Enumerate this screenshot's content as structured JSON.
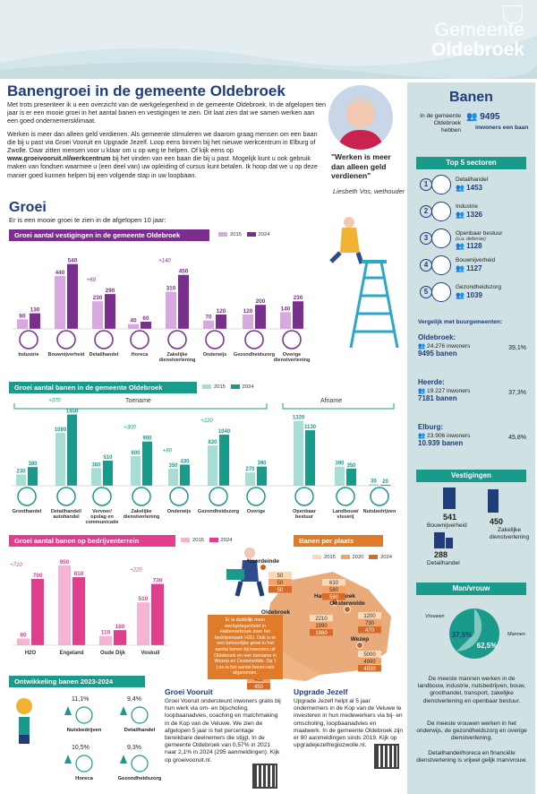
{
  "header": {
    "org_line1": "Gemeente",
    "org_line2": "Oldebroek"
  },
  "title": "Banengroei in de gemeente Oldebroek",
  "intro": {
    "p1": "Met trots presenteer ik u een overzicht van de werkgelegenheid in de gemeente Oldebroek. In de afgelopen tien jaar is er een mooie groei in het aantal banen en vestigingen te zien. Dit laat zien dat we samen werken aan een goed ondernemersklimaat.",
    "p2a": "Werken is meer dan alleen geld verdienen. Als gemeente stimuleren we daarom graag mensen om een baan die bij u past via Groei Vooruit en Upgrade Jezelf. Loop eens binnen bij het nieuwe werkcentrum in Elburg of Zwolle. Daar zitten mensen voor u klaar om u op weg te helpen. Of kijk eens op",
    "link": "www.groeivooruit.nl/werkcentrum",
    "p2b": "bij het vinden van een baan die bij u past. Mogelijk kunt u ook gebruik maken van fondsen waarmee u (een deel van) uw opleiding of cursus kunt betalen. Ik hoop dat we u op deze manier goed kunnen helpen bij een volgende stap in uw loopbaan."
  },
  "quote": {
    "text": "\"Werken is meer dan alleen geld verdienen\"",
    "by": "Liesbeth Vos, wethouder"
  },
  "groei": {
    "title": "Groei",
    "subtitle": "Er is een mooie groei te zien in de afgelopen 10 jaar:"
  },
  "colors": {
    "purple": "#7a2f8f",
    "teal": "#1a9a8a",
    "pink": "#e23e8e",
    "orange": "#e07b2a",
    "navy": "#1f3d7a"
  },
  "chart_data": [
    {
      "type": "bar",
      "title": "Groei aantal vestigingen in de gemeente Oldebroek",
      "legend": [
        "2015",
        "2024"
      ],
      "categories": [
        "Industrie",
        "Bouwnijverheid",
        "Detailhandel",
        "Horeca",
        "Zakelijke dienstverlening",
        "Onderwijs",
        "Gezondheidszorg",
        "Overige dienstverlening"
      ],
      "series": [
        {
          "name": "2015",
          "values": [
            80,
            440,
            230,
            40,
            310,
            70,
            120,
            140
          ]
        },
        {
          "name": "2024",
          "values": [
            130,
            540,
            290,
            60,
            450,
            120,
            200,
            230
          ]
        }
      ],
      "annotations": [
        {
          "category": "Detailhandel",
          "text": "+60"
        },
        {
          "category": "Zakelijke dienstverlening",
          "text": "+140"
        }
      ],
      "icons": [
        "factory-icon",
        "tools-icon",
        "cart-icon",
        "cup-icon",
        "briefcase-icon",
        "cap-icon",
        "cross-icon",
        "star-icon"
      ]
    },
    {
      "type": "bar",
      "title": "Groei aantal banen in de gemeente Oldebroek",
      "legend": [
        "2015",
        "2024"
      ],
      "group_labels": [
        "Toename",
        "Afname"
      ],
      "categories": [
        "Groothandel",
        "Detailhandel/ autohandel",
        "Vervoer/ opslag en communicatie",
        "Zakelijke dienstverlening",
        "Onderwijs",
        "Gezondheidszorg",
        "Overige",
        "Openbaar bestuur",
        "Landbouw/ visserij",
        "Nutsbedrijven"
      ],
      "series": [
        {
          "name": "2015",
          "values": [
            230,
            1080,
            360,
            600,
            350,
            820,
            270,
            1320,
            390,
            30
          ]
        },
        {
          "name": "2024",
          "values": [
            380,
            1450,
            510,
            900,
            430,
            1040,
            390,
            1130,
            350,
            20
          ]
        }
      ],
      "annotations": [
        {
          "category": "Detailhandel/ autohandel",
          "text": "+370"
        },
        {
          "category": "Zakelijke dienstverlening",
          "text": "+300"
        },
        {
          "category": "Onderwijs",
          "text": "+80"
        },
        {
          "category": "Gezondheidszorg",
          "text": "+220"
        }
      ],
      "icons": [
        "people-icon",
        "car-icon",
        "truck-icon",
        "briefcase-icon",
        "cap-icon",
        "cross-icon",
        "star-icon",
        "people-icon",
        "tractor-icon",
        "bolt-icon"
      ]
    },
    {
      "type": "bar",
      "title": "Groei aantal banen op bedrijventerrein",
      "legend": [
        "2015",
        "2024"
      ],
      "categories": [
        "H2O",
        "Engeland",
        "Oude Dijk",
        "Voskuil"
      ],
      "series": [
        {
          "name": "2015",
          "values": [
            80,
            950,
            110,
            510
          ]
        },
        {
          "name": "2024",
          "values": [
            790,
            810,
            180,
            730
          ]
        }
      ],
      "annotations": [
        {
          "category": "H2O",
          "text": "+710"
        },
        {
          "category": "Voskuil",
          "text": "+220"
        }
      ]
    },
    {
      "type": "table",
      "title": "Banen per plaats",
      "legend": [
        "2015",
        "2020",
        "2024"
      ],
      "places": [
        {
          "name": "Noordeinde",
          "values": [
            50,
            50,
            50
          ]
        },
        {
          "name": "Hattemerbroek",
          "values": [
            610,
            580,
            560
          ]
        },
        {
          "name": "Oosterwolde",
          "values": [
            1200,
            730,
            470
          ]
        },
        {
          "name": "Oldebroek",
          "values": [
            2210,
            1990,
            1860
          ]
        },
        {
          "name": "Wezep",
          "values": [
            5000,
            4990,
            4930
          ]
        },
        {
          "name": "'t Loo",
          "values": [
            430,
            450,
            450
          ]
        }
      ],
      "note": "Er is duidelijk meer werkgelegenheid in Hattemerbroek door het bedrijvenpark H2O. Ook is er een behoorlijke groei in het aantal banen bij inwoners uit Oldebroek en een toename in Wezep en Oosterwolde. Op 't Loo is het aantal banen iets afgenomen."
    },
    {
      "type": "bar",
      "title": "Ontwikkeling banen 2023-2024",
      "items": [
        {
          "label": "Nutsbedrijven",
          "value": "11,1%",
          "dir": "up"
        },
        {
          "label": "Detailhandel",
          "value": "9,4%",
          "dir": "up"
        },
        {
          "label": "Horeca",
          "value": "10,5%",
          "dir": "up"
        },
        {
          "label": "Gezondheidszorg",
          "value": "9,3%",
          "dir": "up"
        }
      ]
    }
  ],
  "sidebar": {
    "title": "Banen",
    "intro": "In de gemeente Oldebroek hebben",
    "count": "9495",
    "count_label": "inwoners een baan",
    "top5_title": "Top 5 sectoren",
    "top5": [
      {
        "n": "1",
        "label": "Detailhandel",
        "value": "1453"
      },
      {
        "n": "2",
        "label": "Industrie",
        "value": "1326"
      },
      {
        "n": "3",
        "label": "Openbaar bestuur",
        "sub": "(o.a. defensie)",
        "value": "1128"
      },
      {
        "n": "4",
        "label": "Bouwnijverheid",
        "value": "1127"
      },
      {
        "n": "5",
        "label": "Gezondheidszorg",
        "value": "1039"
      }
    ],
    "compare_title": "Vergelijk met buurgemeenten:",
    "compare": [
      {
        "name": "Oldebroek:",
        "inw": "24.276 inwoners",
        "banen": "9495 banen",
        "pct": "39,1%"
      },
      {
        "name": "Heerde:",
        "inw": "19.227 inwoners",
        "banen": "7181 banen",
        "pct": "37,3%"
      },
      {
        "name": "Elburg:",
        "inw": "23.906 inwoners",
        "banen": "10.939 banen",
        "pct": "45,8%"
      }
    ],
    "vestigingen_title": "Vestigingen",
    "vestigingen": [
      {
        "value": "541",
        "label": "Bouwnijverheid"
      },
      {
        "value": "450",
        "label": "Zakelijke dienstverlening"
      },
      {
        "value": "288",
        "label": "Detailhandel"
      }
    ],
    "manvrouw_title": "Man/vrouw",
    "vrouwen_label": "Vrouwen",
    "mannen_label": "Mannen",
    "vrouwen_pct": "37,5%",
    "mannen_pct": "62,5%",
    "vrouwen_share": 37.5,
    "t1": "De meeste mannen werken in de landbouw, industrie, nutsbedrijven, bouw, groothandel, transport, zakelijke dienstverlening en openbaar bestuur.",
    "t2": "De meeste vrouwen werken in het onderwijs, de gezondheidszorg en overige dienstverlening.",
    "t3": "Detailhandel/horeca en financiële dienstverlening is vrijwel gelijk man/vrouw."
  },
  "groei_vooruit": {
    "title": "Groei Vooruit",
    "text": "Groei Vooruit ondersteunt inwoners gratis bij hun werk via om- en bijscholing, loopbaanadvies, coaching en matchmaking in de Kop van de Veluwe. We zien de afgelopen 5 jaar is het percentage bereikbare deelnemers die stijgt. In de gemeente Oldebroek van 0,57% in 2021 naar 2,1% in 2024 (295 aanmeldingen). Kijk op groeivooruit.nl."
  },
  "upgrade": {
    "title": "Upgrade Jezelf",
    "text": "Upgrade Jezelf helpt al 5 jaar ondernemers in de Kop van de Veluwe te investeren in hun medewerkers via bij- en omscholing, loopbaanadvies en maatwerk. In de gemeente Oldebroek zijn er 80 aanmeldingen sinds 2019. Kijk op upgradejezelfregiozwolle.nl."
  }
}
